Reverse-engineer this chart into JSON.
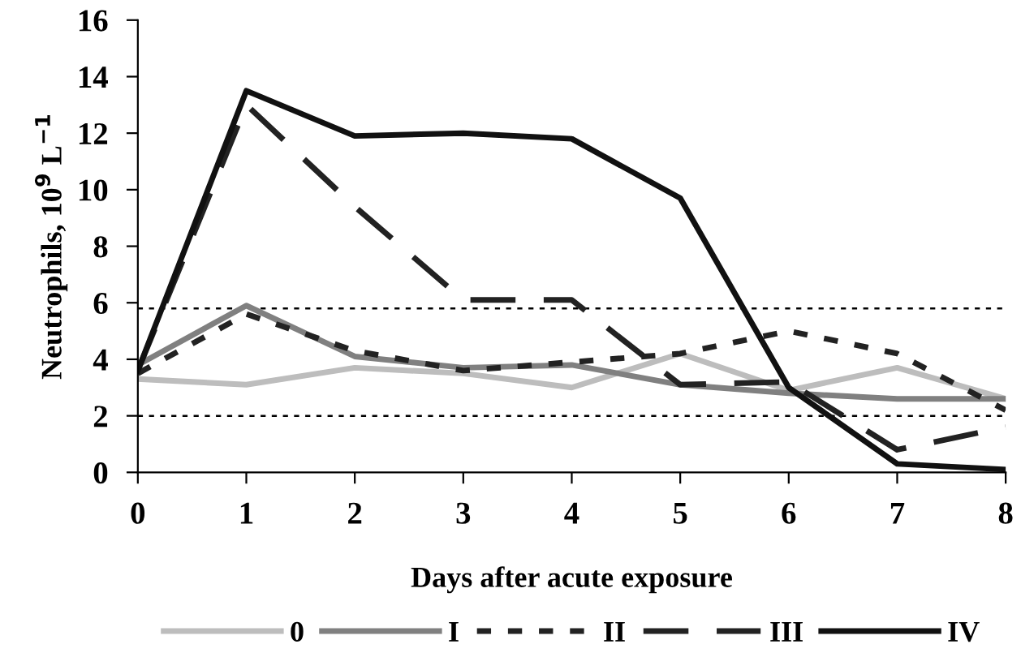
{
  "chart_data": {
    "type": "line",
    "xlabel": "Days after acute exposure",
    "ylabel": "Neutrophils, 10$^{9}$ L$^{−1}$",
    "x": [
      0,
      1,
      2,
      3,
      4,
      5,
      6,
      7,
      8
    ],
    "xlim": [
      0,
      8
    ],
    "xticks": [
      0,
      1,
      2,
      3,
      4,
      5,
      6,
      7,
      8
    ],
    "ylim": [
      0,
      16
    ],
    "yticks": [
      0,
      2,
      4,
      6,
      8,
      10,
      12,
      14,
      16
    ],
    "grid": false,
    "legend": "bottom",
    "marker": "none",
    "ref_lines": [
      {
        "axis": "y",
        "value": 5.8,
        "line_style": "dotted",
        "color": "#000000"
      },
      {
        "axis": "y",
        "value": 2.0,
        "line_style": "dotted",
        "color": "#000000"
      }
    ],
    "series": [
      {
        "name": "0",
        "color": "#bdbdbd",
        "line_style": "solid",
        "values": [
          3.3,
          3.1,
          3.7,
          3.5,
          3.0,
          4.2,
          2.9,
          3.7,
          2.6
        ]
      },
      {
        "name": "I",
        "color": "#808080",
        "line_style": "solid",
        "values": [
          3.8,
          5.9,
          4.1,
          3.7,
          3.8,
          3.1,
          2.8,
          2.6,
          2.6
        ]
      },
      {
        "name": "II",
        "color": "#222222",
        "line_style": "dotted",
        "values": [
          3.5,
          5.6,
          4.3,
          3.6,
          3.9,
          4.2,
          5.0,
          4.2,
          2.2
        ]
      },
      {
        "name": "III",
        "color": "#222222",
        "line_style": "dashed",
        "values": [
          3.6,
          13.0,
          9.4,
          6.1,
          6.1,
          3.1,
          3.2,
          0.8,
          1.6
        ]
      },
      {
        "name": "IV",
        "color": "#111111",
        "line_style": "solid",
        "values": [
          3.6,
          13.5,
          11.9,
          12.0,
          11.8,
          9.7,
          3.0,
          0.3,
          0.1
        ]
      }
    ]
  }
}
